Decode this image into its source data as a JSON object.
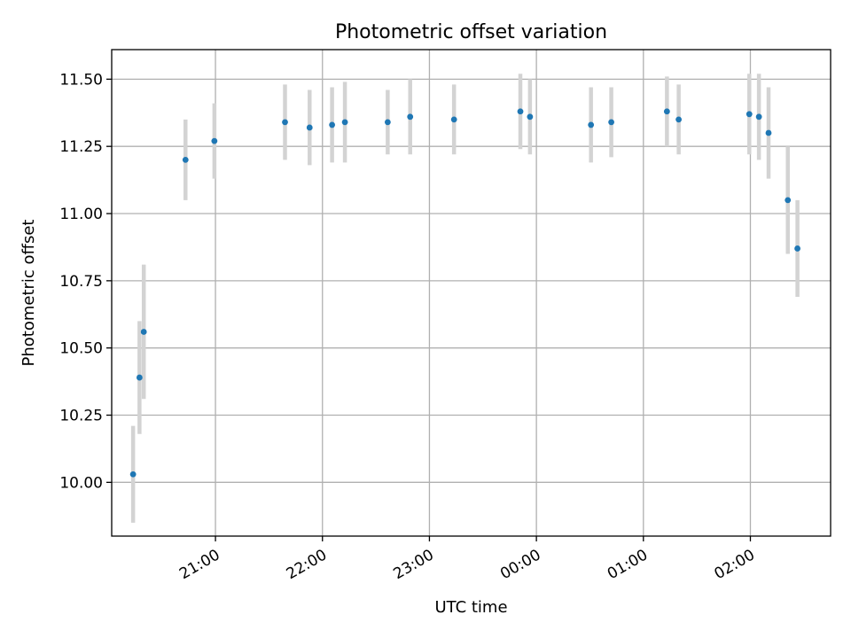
{
  "chart_data": {
    "type": "scatter",
    "title": "Photometric offset variation",
    "xlabel": "UTC time",
    "ylabel": "Photometric offset",
    "x_unit": "hours (UTC, hours past 24 = next day)",
    "xlim": [
      20.03,
      26.75
    ],
    "ylim": [
      9.8,
      11.61
    ],
    "grid": true,
    "legend": "none",
    "colors": {
      "point": "#1f77b4",
      "errorbar": "#d3d3d3"
    },
    "x_ticks": [
      {
        "value": 21,
        "label": "21:00"
      },
      {
        "value": 22,
        "label": "22:00"
      },
      {
        "value": 23,
        "label": "23:00"
      },
      {
        "value": 24,
        "label": "00:00"
      },
      {
        "value": 25,
        "label": "01:00"
      },
      {
        "value": 26,
        "label": "02:00"
      }
    ],
    "y_ticks": [
      {
        "value": 10.0,
        "label": "10.00"
      },
      {
        "value": 10.25,
        "label": "10.25"
      },
      {
        "value": 10.5,
        "label": "10.50"
      },
      {
        "value": 10.75,
        "label": "10.75"
      },
      {
        "value": 11.0,
        "label": "11.00"
      },
      {
        "value": 11.25,
        "label": "11.25"
      },
      {
        "value": 11.5,
        "label": "11.50"
      }
    ],
    "points": [
      {
        "x": 20.23,
        "y": 10.03,
        "err": 0.18
      },
      {
        "x": 20.29,
        "y": 10.39,
        "err": 0.21
      },
      {
        "x": 20.33,
        "y": 10.56,
        "err": 0.25
      },
      {
        "x": 20.72,
        "y": 11.2,
        "err": 0.15
      },
      {
        "x": 20.99,
        "y": 11.27,
        "err": 0.14
      },
      {
        "x": 21.65,
        "y": 11.34,
        "err": 0.14
      },
      {
        "x": 21.88,
        "y": 11.32,
        "err": 0.14
      },
      {
        "x": 22.09,
        "y": 11.33,
        "err": 0.14
      },
      {
        "x": 22.21,
        "y": 11.34,
        "err": 0.15
      },
      {
        "x": 22.61,
        "y": 11.34,
        "err": 0.12
      },
      {
        "x": 22.82,
        "y": 11.36,
        "err": 0.14
      },
      {
        "x": 23.23,
        "y": 11.35,
        "err": 0.13
      },
      {
        "x": 23.85,
        "y": 11.38,
        "err": 0.14
      },
      {
        "x": 23.94,
        "y": 11.36,
        "err": 0.14
      },
      {
        "x": 24.51,
        "y": 11.33,
        "err": 0.14
      },
      {
        "x": 24.7,
        "y": 11.34,
        "err": 0.13
      },
      {
        "x": 25.22,
        "y": 11.38,
        "err": 0.13
      },
      {
        "x": 25.33,
        "y": 11.35,
        "err": 0.13
      },
      {
        "x": 25.99,
        "y": 11.37,
        "err": 0.15
      },
      {
        "x": 26.08,
        "y": 11.36,
        "err": 0.16
      },
      {
        "x": 26.17,
        "y": 11.3,
        "err": 0.17
      },
      {
        "x": 26.35,
        "y": 11.05,
        "err": 0.2
      },
      {
        "x": 26.44,
        "y": 10.87,
        "err": 0.18
      }
    ]
  }
}
